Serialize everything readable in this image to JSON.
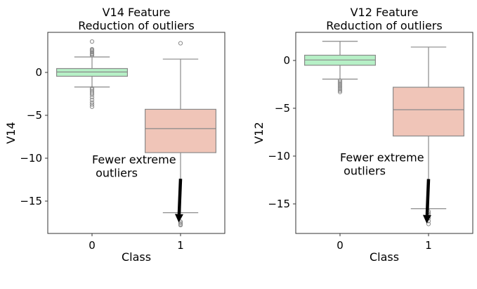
{
  "chart_data": [
    {
      "type": "box",
      "title": "V14 Feature\nReduction of outliers",
      "title_lines": [
        "V14 Feature",
        "Reduction of outliers"
      ],
      "xlabel": "Class",
      "ylabel": "V14",
      "categories": [
        "0",
        "1"
      ],
      "xlim": [
        -0.5,
        1.5
      ],
      "ylim": [
        -18.77,
        4.67
      ],
      "yticks": [
        0,
        -5,
        -10,
        -15
      ],
      "ytick_labels": [
        "0",
        "−5",
        "−10",
        "−15"
      ],
      "colors": [
        "#b6f0c6",
        "#f0c5b8"
      ],
      "boxes": [
        {
          "category": "0",
          "whisker_low": -1.7,
          "q1": -0.45,
          "median": 0.05,
          "q3": 0.45,
          "whisker_high": 1.8,
          "outliers": [
            2.0,
            2.1,
            2.2,
            2.35,
            2.5,
            2.6,
            2.7,
            3.6,
            -1.85,
            -2.0,
            -2.2,
            -2.4,
            -2.6,
            -2.9,
            -3.2,
            -3.5,
            -3.75,
            -4.0
          ]
        },
        {
          "category": "1",
          "whisker_low": -16.35,
          "q1": -9.35,
          "median": -6.55,
          "q3": -4.3,
          "whisker_high": 1.55,
          "outliers": [
            3.4,
            -17.4,
            -17.55,
            -17.7,
            -17.8
          ]
        }
      ],
      "annotation": {
        "text_lines": [
          "Fewer extreme",
          " outliers"
        ],
        "text_at": [
          0,
          -10.2
        ],
        "arrow_from": [
          1.0,
          -12.4
        ],
        "arrow_to": [
          0.98,
          -17.5
        ]
      }
    },
    {
      "type": "box",
      "title": "V12 Feature\nReduction of outliers",
      "title_lines": [
        "V12 Feature",
        "Reduction of outliers"
      ],
      "xlabel": "Class",
      "ylabel": "V12",
      "categories": [
        "0",
        "1"
      ],
      "xlim": [
        -0.5,
        1.5
      ],
      "ylim": [
        -18.09,
        2.94
      ],
      "yticks": [
        0,
        -5,
        -10,
        -15
      ],
      "ytick_labels": [
        "0",
        "−5",
        "−10",
        "−15"
      ],
      "colors": [
        "#b6f0c6",
        "#f0c5b8"
      ],
      "boxes": [
        {
          "category": "0",
          "whisker_low": -1.95,
          "q1": -0.5,
          "median": 0.05,
          "q3": 0.55,
          "whisker_high": 2.0,
          "outliers": [
            -2.1,
            -2.25,
            -2.4,
            -2.55,
            -2.7,
            -2.85,
            -3.0,
            -3.15,
            -3.3
          ]
        },
        {
          "category": "1",
          "whisker_low": -15.5,
          "q1": -7.9,
          "median": -5.15,
          "q3": -2.8,
          "whisker_high": 1.4,
          "outliers": [
            -15.8,
            -16.0,
            -16.2,
            -16.5,
            -16.8,
            -17.1
          ]
        }
      ],
      "annotation": {
        "text_lines": [
          "Fewer extreme",
          " outliers"
        ],
        "text_at": [
          0,
          -10.2
        ],
        "arrow_from": [
          1.0,
          -12.4
        ],
        "arrow_to": [
          0.98,
          -17.05
        ]
      }
    }
  ]
}
